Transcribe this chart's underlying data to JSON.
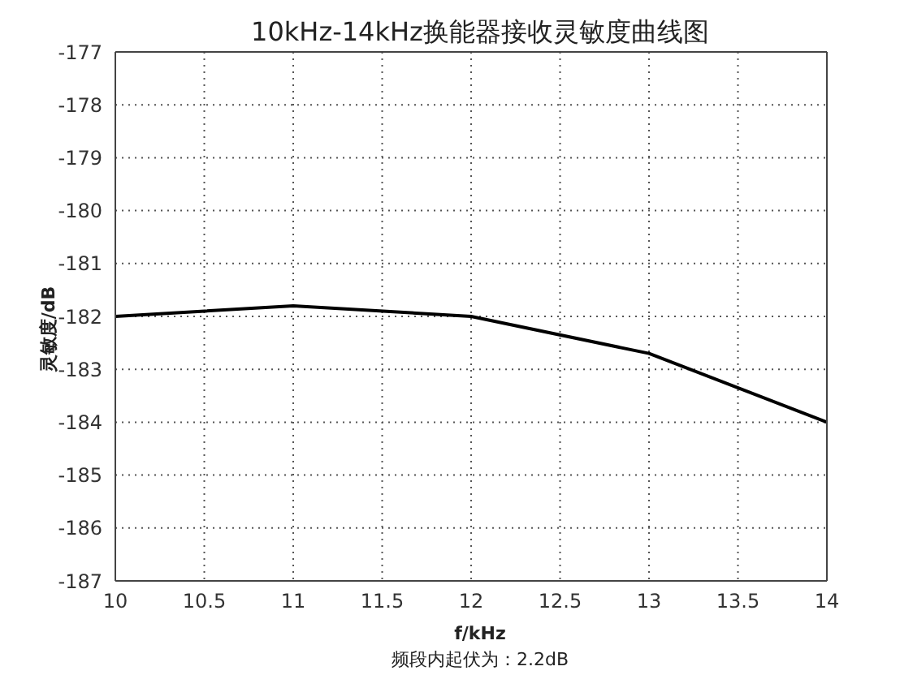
{
  "chart_data": {
    "type": "line",
    "title": "10kHz-14kHz换能器接收灵敏度曲线图",
    "xlabel": "f/kHz",
    "ylabel": "灵敏度/dB",
    "annotations": [
      "频段内起伏为：2.2dB"
    ],
    "x": [
      10,
      11,
      12,
      13,
      14
    ],
    "series": [
      {
        "color": "#000000",
        "values": [
          -182,
          -181.8,
          -182,
          -182.7,
          -184
        ]
      }
    ],
    "xlim": [
      10,
      14
    ],
    "xticks": [
      10,
      10.5,
      11,
      11.5,
      12,
      12.5,
      13,
      13.5,
      14
    ],
    "ylim": [
      -187,
      -177
    ],
    "yticks": [
      -187,
      -186,
      -185,
      -184,
      -183,
      -182,
      -181,
      -180,
      -179,
      -178,
      -177
    ],
    "grid": true,
    "marker": "none",
    "line_style": "solid"
  }
}
